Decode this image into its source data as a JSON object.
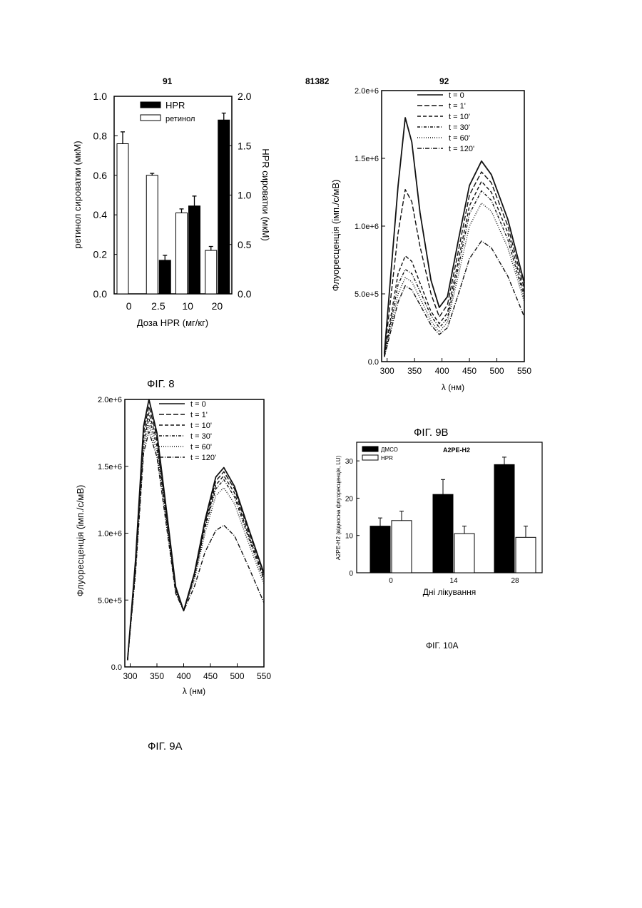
{
  "header": {
    "left": "91",
    "center": "81382",
    "right": "92"
  },
  "captions": {
    "fig8": "ФІГ. 8",
    "fig9a": "ФІГ. 9А",
    "fig9b": "ФІГ. 9B",
    "fig10a": "ФІГ. 10А"
  },
  "chart_data": [
    {
      "id": "fig8",
      "type": "bar",
      "title": "",
      "xlabel": "Доза HPR (мг/кг)",
      "ylabel": "ретинол сироватки (мкМ)",
      "y2label": "HPR сироватки (мкМ)",
      "categories": [
        "0",
        "2.5",
        "10",
        "20"
      ],
      "ylim": [
        0,
        1.0
      ],
      "y2lim": [
        0,
        2.0
      ],
      "yticks": [
        "0.0",
        "0.2",
        "0.4",
        "0.6",
        "0.8",
        "1.0"
      ],
      "y2ticks": [
        "0.0",
        "0.5",
        "1.0",
        "1.5",
        "2.0"
      ],
      "legend_position": "top-center",
      "series": [
        {
          "name": "ретинол",
          "axis": "left",
          "color": "#ffffff",
          "values": [
            0.76,
            0.6,
            0.41,
            0.22
          ],
          "errors": [
            0.06,
            0.01,
            0.02,
            0.02
          ]
        },
        {
          "name": "HPR",
          "axis": "right",
          "color": "#000000",
          "values": [
            null,
            0.34,
            0.89,
            1.76
          ],
          "errors": [
            null,
            0.05,
            0.1,
            0.07
          ]
        }
      ]
    },
    {
      "id": "fig9b",
      "type": "line",
      "title": "",
      "xlabel": "λ (нм)",
      "ylabel": "Флуоресценція (імп./с/мВ)",
      "xlim": [
        290,
        550
      ],
      "ylim": [
        0,
        2000000
      ],
      "xticks": [
        "300",
        "350",
        "400",
        "450",
        "500",
        "550"
      ],
      "yticks": [
        "0.0",
        "5.0e+5",
        "1.0e+6",
        "1.5e+6",
        "2.0e+6"
      ],
      "legend_position": "top-left",
      "series": [
        {
          "name": "t = 0",
          "dash": "",
          "points": [
            [
              295,
              60000
            ],
            [
              320,
              1300000
            ],
            [
              333,
              1800000
            ],
            [
              345,
              1620000
            ],
            [
              360,
              1100000
            ],
            [
              380,
              600000
            ],
            [
              395,
              400000
            ],
            [
              410,
              480000
            ],
            [
              430,
              900000
            ],
            [
              450,
              1300000
            ],
            [
              472,
              1480000
            ],
            [
              490,
              1380000
            ],
            [
              520,
              1050000
            ],
            [
              550,
              580000
            ]
          ]
        },
        {
          "name": "t = 1'",
          "dash": "7,3",
          "points": [
            [
              295,
              50000
            ],
            [
              320,
              950000
            ],
            [
              333,
              1270000
            ],
            [
              345,
              1180000
            ],
            [
              360,
              850000
            ],
            [
              380,
              500000
            ],
            [
              395,
              330000
            ],
            [
              410,
              420000
            ],
            [
              430,
              820000
            ],
            [
              450,
              1230000
            ],
            [
              472,
              1400000
            ],
            [
              490,
              1320000
            ],
            [
              520,
              1000000
            ],
            [
              550,
              540000
            ]
          ]
        },
        {
          "name": "t = 10'",
          "dash": "5,3",
          "points": [
            [
              295,
              45000
            ],
            [
              320,
              650000
            ],
            [
              333,
              780000
            ],
            [
              345,
              740000
            ],
            [
              360,
              580000
            ],
            [
              380,
              370000
            ],
            [
              395,
              280000
            ],
            [
              410,
              360000
            ],
            [
              430,
              750000
            ],
            [
              450,
              1150000
            ],
            [
              472,
              1330000
            ],
            [
              490,
              1250000
            ],
            [
              520,
              950000
            ],
            [
              550,
              500000
            ]
          ]
        },
        {
          "name": "t = 30'",
          "dash": "4,2,1,2",
          "points": [
            [
              295,
              40000
            ],
            [
              320,
              570000
            ],
            [
              333,
              680000
            ],
            [
              345,
              650000
            ],
            [
              360,
              520000
            ],
            [
              380,
              340000
            ],
            [
              395,
              250000
            ],
            [
              410,
              320000
            ],
            [
              430,
              700000
            ],
            [
              450,
              1090000
            ],
            [
              472,
              1260000
            ],
            [
              490,
              1190000
            ],
            [
              520,
              900000
            ],
            [
              550,
              470000
            ]
          ]
        },
        {
          "name": "t = 60'",
          "dash": "1,2",
          "points": [
            [
              295,
              38000
            ],
            [
              320,
              500000
            ],
            [
              333,
              620000
            ],
            [
              345,
              590000
            ],
            [
              360,
              470000
            ],
            [
              380,
              300000
            ],
            [
              395,
              220000
            ],
            [
              410,
              290000
            ],
            [
              430,
              640000
            ],
            [
              450,
              1000000
            ],
            [
              472,
              1170000
            ],
            [
              490,
              1110000
            ],
            [
              520,
              840000
            ],
            [
              550,
              440000
            ]
          ]
        },
        {
          "name": "t = 120'",
          "dash": "6,2,1,2",
          "points": [
            [
              295,
              35000
            ],
            [
              320,
              440000
            ],
            [
              333,
              560000
            ],
            [
              345,
              530000
            ],
            [
              360,
              420000
            ],
            [
              380,
              270000
            ],
            [
              395,
              200000
            ],
            [
              410,
              250000
            ],
            [
              430,
              500000
            ],
            [
              450,
              760000
            ],
            [
              472,
              890000
            ],
            [
              490,
              840000
            ],
            [
              520,
              630000
            ],
            [
              550,
              330000
            ]
          ]
        }
      ]
    },
    {
      "id": "fig9a",
      "type": "line",
      "title": "",
      "xlabel": "λ (нм)",
      "ylabel": "Флуоресценція (імп./с/мВ)",
      "xlim": [
        290,
        550
      ],
      "ylim": [
        0,
        2000000
      ],
      "xticks": [
        "300",
        "350",
        "400",
        "450",
        "500",
        "550"
      ],
      "yticks": [
        "0.0",
        "5.0e+5",
        "1.0e+6",
        "1.5e+6",
        "2.0e+6"
      ],
      "legend_position": "top-center",
      "series": [
        {
          "name": "t = 0",
          "dash": "",
          "points": [
            [
              295,
              50000
            ],
            [
              310,
              800000
            ],
            [
              325,
              1800000
            ],
            [
              335,
              2000000
            ],
            [
              350,
              1750000
            ],
            [
              370,
              1100000
            ],
            [
              385,
              600000
            ],
            [
              400,
              420000
            ],
            [
              420,
              700000
            ],
            [
              440,
              1100000
            ],
            [
              460,
              1420000
            ],
            [
              475,
              1490000
            ],
            [
              495,
              1350000
            ],
            [
              520,
              1050000
            ],
            [
              550,
              700000
            ]
          ]
        },
        {
          "name": "t = 1'",
          "dash": "7,3",
          "points": [
            [
              295,
              50000
            ],
            [
              310,
              780000
            ],
            [
              325,
              1760000
            ],
            [
              335,
              1950000
            ],
            [
              350,
              1720000
            ],
            [
              370,
              1080000
            ],
            [
              385,
              590000
            ],
            [
              400,
              420000
            ],
            [
              420,
              690000
            ],
            [
              440,
              1080000
            ],
            [
              460,
              1390000
            ],
            [
              475,
              1460000
            ],
            [
              495,
              1330000
            ],
            [
              520,
              1030000
            ],
            [
              550,
              690000
            ]
          ]
        },
        {
          "name": "t = 10'",
          "dash": "5,3",
          "points": [
            [
              295,
              50000
            ],
            [
              310,
              760000
            ],
            [
              325,
              1720000
            ],
            [
              335,
              1900000
            ],
            [
              350,
              1690000
            ],
            [
              370,
              1060000
            ],
            [
              385,
              580000
            ],
            [
              400,
              420000
            ],
            [
              420,
              680000
            ],
            [
              440,
              1060000
            ],
            [
              460,
              1360000
            ],
            [
              475,
              1430000
            ],
            [
              495,
              1300000
            ],
            [
              520,
              1000000
            ],
            [
              550,
              670000
            ]
          ]
        },
        {
          "name": "t = 30'",
          "dash": "4,2,1,2",
          "points": [
            [
              295,
              50000
            ],
            [
              310,
              740000
            ],
            [
              325,
              1680000
            ],
            [
              335,
              1860000
            ],
            [
              350,
              1650000
            ],
            [
              370,
              1040000
            ],
            [
              385,
              570000
            ],
            [
              400,
              420000
            ],
            [
              420,
              670000
            ],
            [
              440,
              1040000
            ],
            [
              460,
              1330000
            ],
            [
              475,
              1400000
            ],
            [
              495,
              1270000
            ],
            [
              520,
              980000
            ],
            [
              550,
              650000
            ]
          ]
        },
        {
          "name": "t = 60'",
          "dash": "1,2",
          "points": [
            [
              295,
              50000
            ],
            [
              310,
              720000
            ],
            [
              325,
              1640000
            ],
            [
              335,
              1810000
            ],
            [
              350,
              1610000
            ],
            [
              370,
              1020000
            ],
            [
              385,
              560000
            ],
            [
              400,
              420000
            ],
            [
              420,
              650000
            ],
            [
              440,
              1000000
            ],
            [
              460,
              1280000
            ],
            [
              475,
              1340000
            ],
            [
              495,
              1220000
            ],
            [
              520,
              940000
            ],
            [
              550,
              620000
            ]
          ]
        },
        {
          "name": "t = 120'",
          "dash": "6,2,1,2",
          "points": [
            [
              295,
              50000
            ],
            [
              310,
              700000
            ],
            [
              325,
              1600000
            ],
            [
              335,
              1760000
            ],
            [
              350,
              1570000
            ],
            [
              370,
              990000
            ],
            [
              385,
              550000
            ],
            [
              400,
              420000
            ],
            [
              420,
              600000
            ],
            [
              440,
              860000
            ],
            [
              460,
              1020000
            ],
            [
              475,
              1060000
            ],
            [
              495,
              980000
            ],
            [
              520,
              760000
            ],
            [
              550,
              480000
            ]
          ]
        }
      ]
    },
    {
      "id": "fig10a",
      "type": "bar",
      "title": "A2PE-H2",
      "xlabel": "Дні лікування",
      "ylabel": "A2PE-H2 (відносна флуоресценція, LU)",
      "categories": [
        "0",
        "14",
        "28"
      ],
      "ylim": [
        0,
        35
      ],
      "yticks": [
        "0",
        "10",
        "20",
        "30"
      ],
      "legend_position": "top-left",
      "series": [
        {
          "name": "ДМСО",
          "color": "#000000",
          "values": [
            12.5,
            21,
            29
          ],
          "errors": [
            2.2,
            4,
            2
          ]
        },
        {
          "name": "HPR",
          "color": "#ffffff",
          "values": [
            14,
            10.5,
            9.5
          ],
          "errors": [
            2.5,
            2,
            3
          ]
        }
      ]
    }
  ]
}
